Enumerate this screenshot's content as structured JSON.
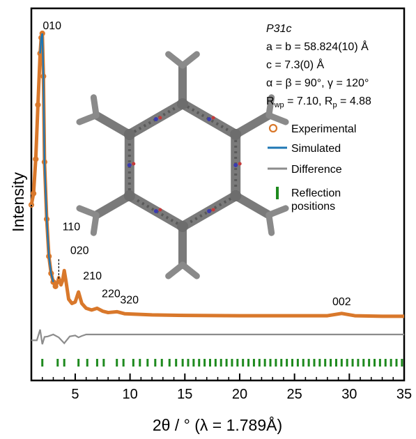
{
  "chart_data": {
    "type": "line",
    "xlabel": "2θ / ° (λ = 1.789Å)",
    "ylabel": "Intensity",
    "xlim": [
      1,
      35
    ],
    "xticks": [
      5,
      10,
      15,
      20,
      25,
      30,
      35
    ],
    "y_tick_labels": false,
    "grid": false,
    "legend_position": "right",
    "info": {
      "space_group": "P31c",
      "a_b": "a = b = 58.824(10) Å",
      "c": "c = 7.3(0) Å",
      "angles": "α = β = 90°, γ = 120°",
      "r_wp_label": "R",
      "r_wp_sub": "wp",
      "r_wp_value": " = 7.10, R",
      "r_p_sub": "p",
      "r_p_value": " = 4.88"
    },
    "legend": [
      {
        "label": "Experimental",
        "marker": "open-circle",
        "color": "#d9782b"
      },
      {
        "label": "Simulated",
        "marker": "line",
        "color": "#1f77b4"
      },
      {
        "label": "Difference",
        "marker": "line",
        "color": "#8c8c8c"
      },
      {
        "label": "Reflection\npositions",
        "marker": "bar",
        "color": "#1e8a1e"
      }
    ],
    "peaks": [
      {
        "hkl": "010",
        "x": 2.0
      },
      {
        "hkl": "110",
        "x": 3.5
      },
      {
        "hkl": "020",
        "x": 4.0
      },
      {
        "hkl": "210",
        "x": 5.3
      },
      {
        "hkl": "220",
        "x": 7.0
      },
      {
        "hkl": "320",
        "x": 8.8
      },
      {
        "hkl": "002",
        "x": 29.3
      }
    ],
    "series": [
      {
        "name": "Experimental",
        "color": "#d9782b",
        "x": [
          1.0,
          1.2,
          1.4,
          1.6,
          1.8,
          1.9,
          2.0,
          2.1,
          2.2,
          2.4,
          2.6,
          2.8,
          3.0,
          3.2,
          3.4,
          3.5,
          3.7,
          3.85,
          4.0,
          4.15,
          4.4,
          4.7,
          5.0,
          5.3,
          5.6,
          6.0,
          6.5,
          7.0,
          7.5,
          8.0,
          8.8,
          9.5,
          12,
          15,
          20,
          25,
          28,
          29.3,
          30.5,
          33,
          35
        ],
        "y": [
          0.4,
          0.44,
          0.56,
          0.75,
          0.93,
          0.985,
          1.0,
          0.85,
          0.55,
          0.35,
          0.22,
          0.16,
          0.13,
          0.115,
          0.13,
          0.145,
          0.12,
          0.135,
          0.17,
          0.135,
          0.07,
          0.055,
          0.06,
          0.095,
          0.055,
          0.038,
          0.032,
          0.038,
          0.028,
          0.023,
          0.026,
          0.019,
          0.015,
          0.013,
          0.012,
          0.012,
          0.012,
          0.02,
          0.012,
          0.01,
          0.01
        ]
      },
      {
        "name": "Simulated",
        "color": "#1f77b4",
        "x": [
          1.8,
          1.9,
          2.0,
          2.1,
          2.2,
          2.4,
          2.6,
          2.8,
          3.0
        ],
        "y": [
          0.93,
          0.985,
          1.0,
          0.85,
          0.55,
          0.35,
          0.22,
          0.16,
          0.13
        ]
      },
      {
        "name": "Difference",
        "color": "#8c8c8c",
        "x": [
          1.0,
          1.5,
          1.8,
          2.0,
          2.2,
          2.5,
          3.0,
          3.5,
          4.0,
          4.5,
          5.0,
          5.3,
          5.6,
          6.0,
          8,
          12,
          20,
          30,
          35
        ],
        "y": [
          -0.012,
          -0.012,
          0.01,
          -0.02,
          -0.005,
          -0.004,
          0.0,
          -0.006,
          -0.018,
          -0.004,
          -0.002,
          -0.006,
          -0.003,
          0.0,
          0.0,
          0.0,
          0.0,
          0.0,
          0.0
        ]
      }
    ],
    "reflection_positions": [
      2.0,
      3.4,
      4.0,
      5.3,
      6.1,
      7.0,
      7.6,
      8.8,
      9.4,
      10.3,
      10.9,
      11.6,
      12.3,
      12.9,
      13.6,
      14.2,
      14.8,
      15.3,
      15.8,
      16.3,
      16.8,
      17.3,
      17.8,
      18.3,
      18.8,
      19.3,
      19.8,
      20.3,
      20.8,
      21.3,
      21.8,
      22.3,
      22.8,
      23.3,
      23.8,
      24.3,
      24.8,
      25.3,
      25.8,
      26.3,
      26.8,
      27.3,
      27.8,
      28.3,
      28.8,
      29.3,
      29.8,
      30.3,
      30.8,
      31.3,
      31.8,
      32.3,
      32.8,
      33.3,
      33.8,
      34.3,
      34.8
    ]
  }
}
